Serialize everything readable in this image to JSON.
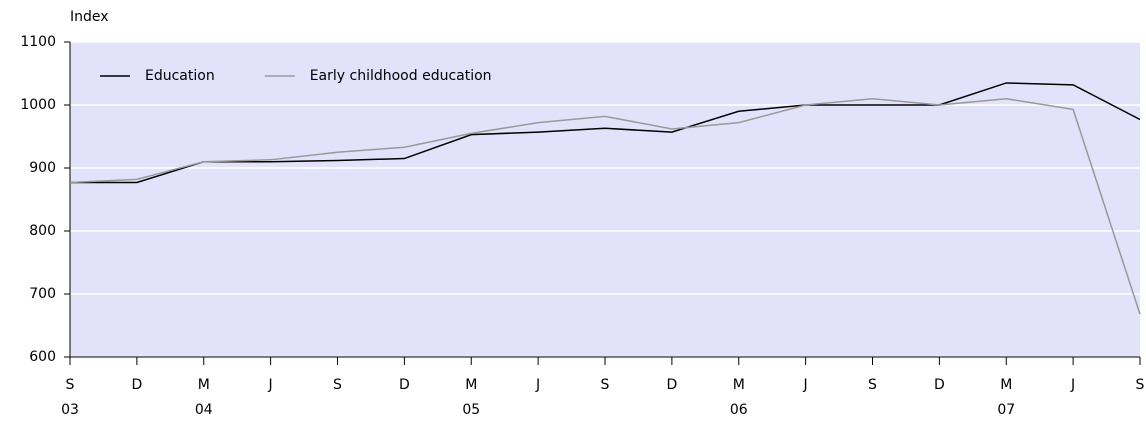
{
  "chart_data": {
    "type": "line",
    "y_label": "Index",
    "categories": [
      "S",
      "D",
      "M",
      "J",
      "S",
      "D",
      "M",
      "J",
      "S",
      "D",
      "M",
      "J",
      "S",
      "D",
      "M",
      "J",
      "S"
    ],
    "year_labels": [
      "03",
      null,
      "04",
      null,
      null,
      null,
      "05",
      null,
      null,
      null,
      "06",
      null,
      null,
      null,
      "07",
      null,
      null
    ],
    "series": [
      {
        "name": "Education",
        "color": "#000000",
        "values": [
          877,
          877,
          910,
          910,
          912,
          915,
          953,
          957,
          963,
          957,
          990,
          1000,
          1000,
          1000,
          1035,
          1032,
          977
        ]
      },
      {
        "name": "Early childhood education",
        "color": "#999999",
        "values": [
          877,
          882,
          910,
          913,
          925,
          933,
          955,
          972,
          982,
          962,
          972,
          1000,
          1010,
          1000,
          1010,
          993,
          668
        ]
      }
    ],
    "ylim": [
      600,
      1100
    ],
    "yticks": [
      600,
      700,
      800,
      900,
      1000,
      1100
    ],
    "grid": true,
    "legend": "top-left"
  }
}
